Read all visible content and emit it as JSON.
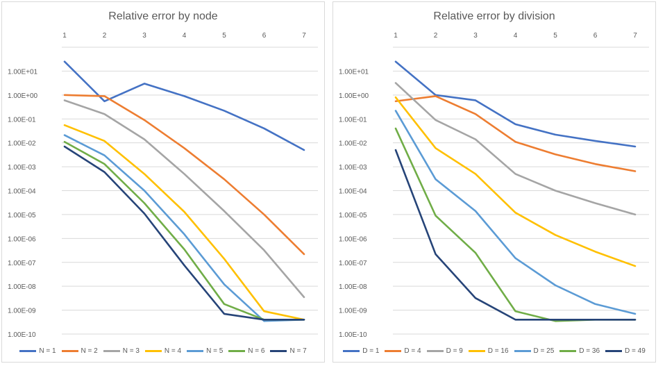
{
  "chart_data": [
    {
      "type": "line",
      "title": "Relative error by node",
      "xlabel": "",
      "ylabel": "",
      "y_scale": "log",
      "ylim": [
        1e-10,
        100
      ],
      "x": [
        1,
        2,
        3,
        4,
        5,
        6,
        7
      ],
      "y_tick_labels": [
        "1.00E-10",
        "1.00E-09",
        "1.00E-08",
        "1.00E-07",
        "1.00E-06",
        "1.00E-05",
        "1.00E-04",
        "1.00E-03",
        "1.00E-02",
        "1.00E-01",
        "1.00E+00",
        "1.00E+01"
      ],
      "x_axis_position": "top",
      "grid": true,
      "legend_position": "bottom",
      "series": [
        {
          "name": "N = 1",
          "color": "#4472C4",
          "values": [
            25,
            0.55,
            3.0,
            0.9,
            0.22,
            0.04,
            0.005
          ]
        },
        {
          "name": "N = 2",
          "color": "#ED7D31",
          "values": [
            1.0,
            0.9,
            0.09,
            0.006,
            0.0003,
            1e-05,
            2.2e-07
          ]
        },
        {
          "name": "N = 3",
          "color": "#A5A5A5",
          "values": [
            0.6,
            0.16,
            0.014,
            0.0005,
            1.4e-05,
            3.2e-07,
            3.5e-09
          ]
        },
        {
          "name": "N = 4",
          "color": "#FFC000",
          "values": [
            0.055,
            0.012,
            0.0005,
            1.3e-05,
            1.4e-07,
            9e-10,
            4e-10
          ]
        },
        {
          "name": "N = 5",
          "color": "#5B9BD5",
          "values": [
            0.021,
            0.003,
            0.0001,
            1.5e-06,
            1.2e-08,
            3.5e-10,
            4e-10
          ]
        },
        {
          "name": "N = 6",
          "color": "#70AD47",
          "values": [
            0.011,
            0.0013,
            3e-05,
            3.5e-07,
            1.8e-09,
            4e-10,
            4e-10
          ]
        },
        {
          "name": "N = 7",
          "color": "#264478",
          "values": [
            0.007,
            0.0006,
            1.1e-05,
            7.5e-08,
            7e-10,
            4e-10,
            4e-10
          ]
        }
      ]
    },
    {
      "type": "line",
      "title": "Relative error by division",
      "xlabel": "",
      "ylabel": "",
      "y_scale": "log",
      "ylim": [
        1e-10,
        100
      ],
      "x": [
        1,
        2,
        3,
        4,
        5,
        6,
        7
      ],
      "y_tick_labels": [
        "1.00E-10",
        "1.00E-09",
        "1.00E-08",
        "1.00E-07",
        "1.00E-06",
        "1.00E-05",
        "1.00E-04",
        "1.00E-03",
        "1.00E-02",
        "1.00E-01",
        "1.00E+00",
        "1.00E+01"
      ],
      "x_axis_position": "top",
      "grid": true,
      "legend_position": "bottom",
      "series": [
        {
          "name": "D = 1",
          "color": "#4472C4",
          "values": [
            25,
            1.0,
            0.6,
            0.06,
            0.022,
            0.012,
            0.007
          ]
        },
        {
          "name": "D = 4",
          "color": "#ED7D31",
          "values": [
            0.55,
            0.9,
            0.16,
            0.011,
            0.0033,
            0.0013,
            0.00065
          ]
        },
        {
          "name": "D = 9",
          "color": "#A5A5A5",
          "values": [
            3.2,
            0.09,
            0.014,
            0.0005,
            0.0001,
            3e-05,
            1e-05
          ]
        },
        {
          "name": "D = 16",
          "color": "#FFC000",
          "values": [
            0.8,
            0.006,
            0.0005,
            1.2e-05,
            1.4e-06,
            2.8e-07,
            7e-08
          ]
        },
        {
          "name": "D = 25",
          "color": "#5B9BD5",
          "values": [
            0.22,
            0.0003,
            1.4e-05,
            1.5e-07,
            1.1e-08,
            1.8e-09,
            7e-10
          ]
        },
        {
          "name": "D = 36",
          "color": "#70AD47",
          "values": [
            0.04,
            9e-06,
            2.5e-07,
            9e-10,
            3.5e-10,
            4e-10,
            4e-10
          ]
        },
        {
          "name": "D = 49",
          "color": "#264478",
          "values": [
            0.005,
            2.2e-07,
            3.2e-09,
            4e-10,
            4e-10,
            4e-10,
            4e-10
          ]
        }
      ]
    }
  ]
}
